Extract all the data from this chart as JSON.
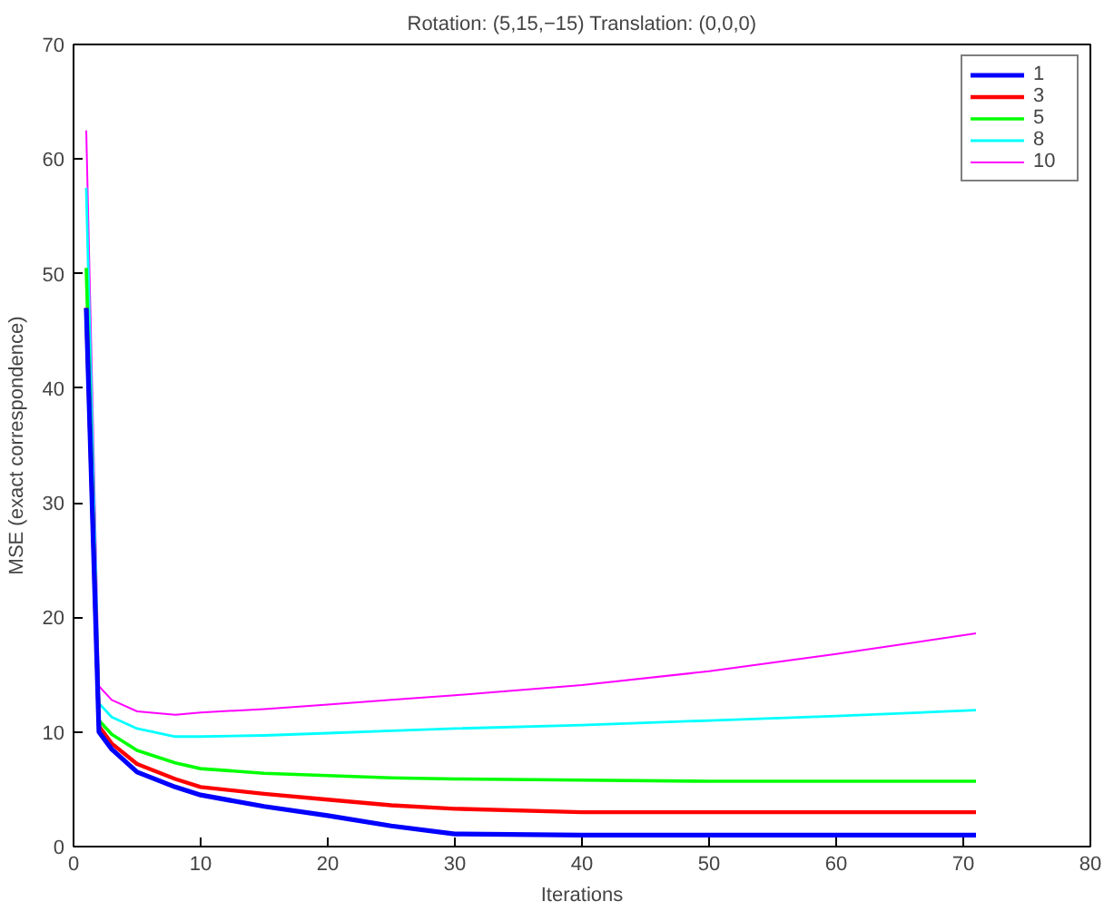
{
  "chart_data": {
    "type": "line",
    "title": "Rotation: (5,15,−15) Translation: (0,0,0)",
    "xlabel": "Iterations",
    "ylabel": "MSE (exact correspondence)",
    "x": [
      1,
      2,
      3,
      5,
      8,
      10,
      15,
      20,
      25,
      30,
      40,
      50,
      60,
      71
    ],
    "series": [
      {
        "name": "1",
        "color": "#0000ff",
        "values": [
          47,
          10,
          8.5,
          6.5,
          5.2,
          4.5,
          3.5,
          2.7,
          1.8,
          1.1,
          1.0,
          1.0,
          1.0,
          1.0
        ]
      },
      {
        "name": "3",
        "color": "#ff0000",
        "values": [
          47,
          10.5,
          9,
          7.2,
          5.9,
          5.2,
          4.6,
          4.1,
          3.6,
          3.3,
          3.0,
          3.0,
          3.0,
          3.0
        ]
      },
      {
        "name": "5",
        "color": "#00ff00",
        "values": [
          50.5,
          11,
          9.8,
          8.4,
          7.3,
          6.8,
          6.4,
          6.2,
          6.0,
          5.9,
          5.8,
          5.7,
          5.7,
          5.7
        ]
      },
      {
        "name": "8",
        "color": "#00ffff",
        "values": [
          57.5,
          12.5,
          11.3,
          10.3,
          9.6,
          9.6,
          9.7,
          9.9,
          10.1,
          10.3,
          10.6,
          11.0,
          11.4,
          11.9
        ]
      },
      {
        "name": "10",
        "color": "#ff00ff",
        "values": [
          62.5,
          14,
          12.8,
          11.8,
          11.5,
          11.7,
          12.0,
          12.4,
          12.8,
          13.2,
          14.1,
          15.3,
          16.8,
          18.6
        ]
      }
    ],
    "xlim": [
      0,
      80
    ],
    "ylim": [
      0,
      70
    ],
    "xticks": [
      0,
      10,
      20,
      30,
      40,
      50,
      60,
      70,
      80
    ],
    "yticks": [
      0,
      10,
      20,
      30,
      40,
      50,
      60,
      70
    ],
    "grid": false,
    "legend": "top right",
    "marker": "none",
    "line_style": "solid"
  }
}
